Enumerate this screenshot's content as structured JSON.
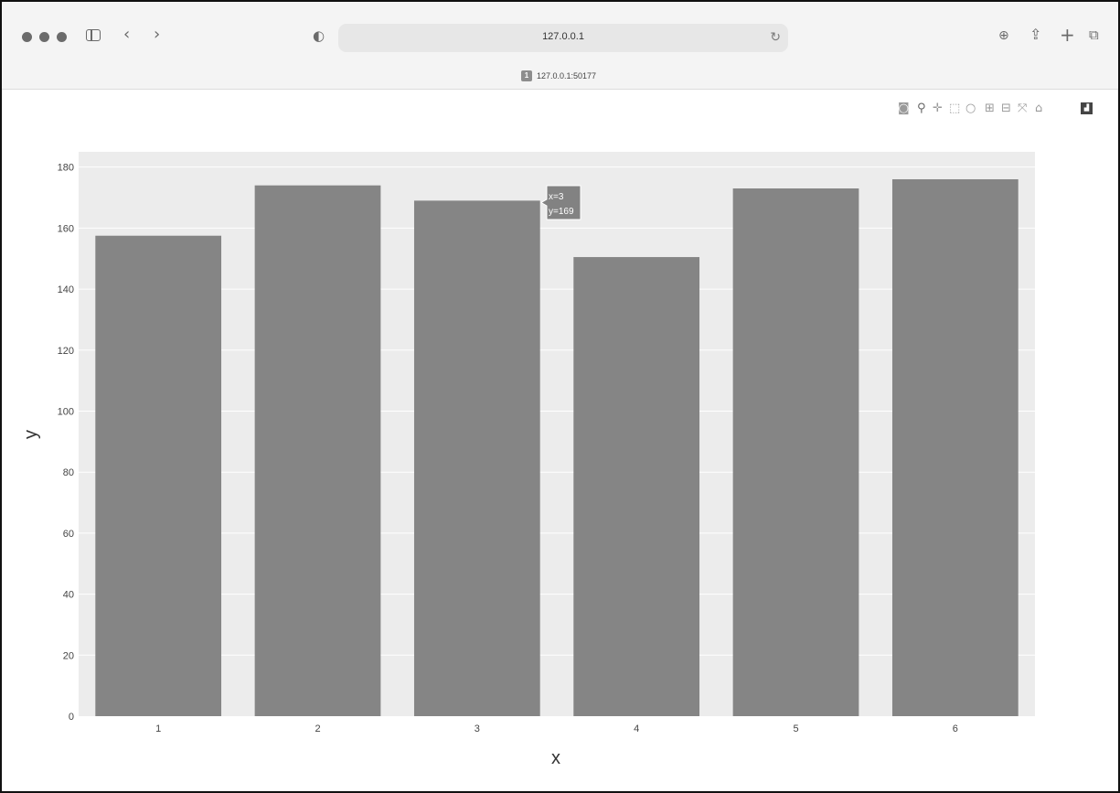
{
  "browser": {
    "address": "127.0.0.1",
    "tab_title": "127.0.0.1:50177",
    "tab_favicon": "1",
    "icons": [
      "sidebar-icon",
      "back-icon",
      "forward-icon",
      "shield-icon",
      "reload-icon",
      "download-icon",
      "share-icon",
      "new-tab-icon",
      "tabs-overview-icon"
    ]
  },
  "modebar": {
    "buttons": [
      "camera-icon",
      "zoom-icon",
      "pan-icon",
      "box-select-icon",
      "lasso-icon",
      "zoom-in-icon",
      "zoom-out-icon",
      "autoscale-icon",
      "reset-axes-icon",
      "plotly-logo-icon"
    ]
  },
  "tooltip": {
    "line1": "x=3",
    "line2": "y=169"
  },
  "chart_data": {
    "type": "bar",
    "categories": [
      "1",
      "2",
      "3",
      "4",
      "5",
      "6"
    ],
    "values": [
      157.5,
      174,
      169,
      150.5,
      173,
      176
    ],
    "xlabel": "x",
    "ylabel": "y",
    "ylim": [
      0,
      185
    ],
    "yticks": [
      0,
      20,
      40,
      60,
      80,
      100,
      120,
      140,
      160,
      180
    ],
    "grid": true,
    "bar_color": "#858585",
    "plot_bg": "#ececec"
  }
}
